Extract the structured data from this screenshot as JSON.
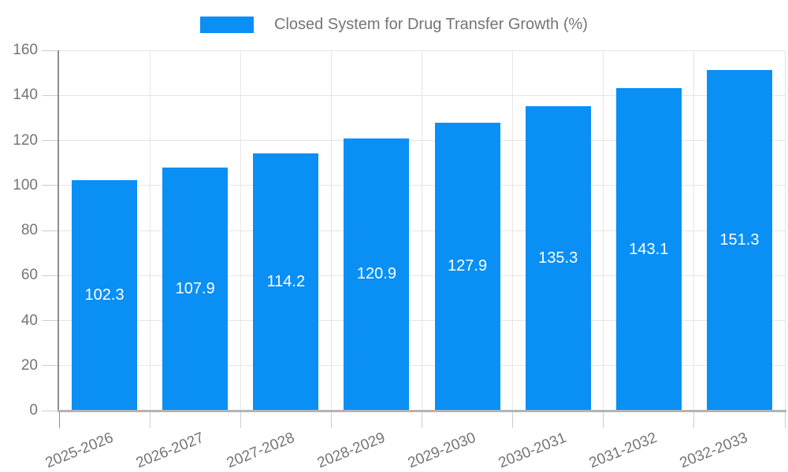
{
  "chart_data": {
    "type": "bar",
    "title": "Closed System for Drug Transfer Growth (%)",
    "categories": [
      "2025-2026",
      "2026-2027",
      "2027-2028",
      "2028-2029",
      "2029-2030",
      "2030-2031",
      "2031-2032",
      "2032-2033"
    ],
    "values": [
      102.3,
      107.9,
      114.2,
      120.9,
      127.9,
      135.3,
      143.1,
      151.3
    ],
    "ylim": [
      0,
      160
    ],
    "yticks": [
      0,
      20,
      40,
      60,
      80,
      100,
      120,
      140,
      160
    ],
    "legend_position": "top",
    "grid": "on",
    "colors": {
      "bar": "#0a8ff5",
      "value_label": "#ffffff",
      "axis_text": "#757575",
      "grid_line": "#e6e6e6",
      "tick_line": "#cccccc",
      "y_axis_line": "#8f8f8f",
      "x_axis_line": "#b3b3b3",
      "background": "#ffffff"
    }
  }
}
